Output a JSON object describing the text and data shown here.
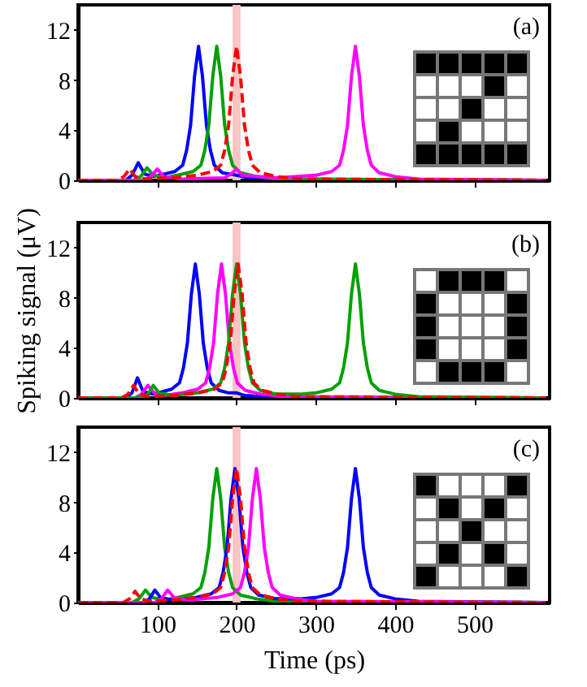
{
  "chart_data": [
    {
      "type": "line",
      "annotations": [
        "(a)"
      ],
      "xlim": [
        0,
        595
      ],
      "xticks": [
        100,
        200,
        300,
        400,
        500
      ],
      "ylim": [
        0,
        14
      ],
      "yticks": [
        0,
        4,
        8,
        12
      ],
      "tick_labels": "y",
      "bands": [
        {
          "axis": "x",
          "from": 195,
          "to": 205,
          "color": "#f9c4c4"
        }
      ],
      "series": [
        {
          "color": "#0000ff",
          "x": [
            0,
            60,
            68,
            76,
            84,
            95,
            102,
            122,
            132,
            137,
            142,
            147,
            152,
            157,
            162,
            167,
            172,
            182,
            200,
            215,
            250,
            590
          ],
          "values": [
            0,
            0,
            0.4,
            1.4,
            0.5,
            0.3,
            0.4,
            0.7,
            1.2,
            2.4,
            4.4,
            8.3,
            10.7,
            8.3,
            4.4,
            2.4,
            1.2,
            0.6,
            0.4,
            0.2,
            0.1,
            0
          ]
        },
        {
          "color": "#00a000",
          "x": [
            0,
            70,
            79,
            87,
            95,
            110,
            125,
            145,
            155,
            160,
            165,
            170,
            175,
            180,
            185,
            190,
            195,
            205,
            225,
            250,
            590
          ],
          "values": [
            0,
            0,
            0.3,
            1.0,
            0.4,
            0.2,
            0.4,
            0.7,
            1.2,
            2.4,
            4.4,
            8.3,
            10.7,
            8.3,
            4.4,
            2.4,
            1.2,
            0.6,
            0.3,
            0.1,
            0
          ]
        },
        {
          "color": "#ff00ff",
          "x": [
            0,
            82,
            92,
            100,
            108,
            130,
            185,
            193,
            200,
            207,
            250,
            300,
            320,
            330,
            335,
            340,
            345,
            350,
            355,
            360,
            365,
            370,
            380,
            400,
            430,
            590
          ],
          "values": [
            0,
            0,
            0.3,
            0.9,
            0.3,
            0.1,
            0.2,
            0.5,
            0.9,
            0.4,
            0.2,
            0.4,
            0.7,
            1.2,
            2.4,
            4.4,
            8.3,
            10.7,
            8.3,
            4.4,
            2.4,
            1.2,
            0.6,
            0.3,
            0.1,
            0
          ]
        },
        {
          "color": "#ff0000",
          "line_style": "dashed",
          "x": [
            0,
            50,
            58,
            65,
            72,
            85,
            120,
            150,
            170,
            180,
            185,
            190,
            195,
            200,
            205,
            210,
            215,
            220,
            230,
            250,
            280,
            590
          ],
          "values": [
            0,
            0,
            0.3,
            0.9,
            0.3,
            0.1,
            0.2,
            0.4,
            0.7,
            1.2,
            2.4,
            4.4,
            8.3,
            10.7,
            8.3,
            4.4,
            2.4,
            1.2,
            0.6,
            0.3,
            0.1,
            0
          ]
        }
      ]
    },
    {
      "type": "line",
      "annotations": [
        "(b)"
      ],
      "ylabel": "Spiking signal (μV)",
      "xlim": [
        0,
        595
      ],
      "xticks": [
        100,
        200,
        300,
        400,
        500
      ],
      "ylim": [
        0,
        14
      ],
      "yticks": [
        0,
        4,
        8,
        12
      ],
      "tick_labels": "y",
      "bands": [
        {
          "axis": "x",
          "from": 195,
          "to": 205,
          "color": "#f9c4c4"
        }
      ],
      "series": [
        {
          "color": "#0000ff",
          "x": [
            0,
            60,
            68,
            75,
            82,
            95,
            118,
            128,
            133,
            138,
            143,
            148,
            153,
            158,
            163,
            168,
            178,
            190,
            200,
            210,
            240,
            280,
            590
          ],
          "values": [
            0,
            0,
            0.4,
            1.6,
            0.5,
            0.3,
            0.7,
            1.2,
            2.4,
            4.4,
            8.3,
            10.7,
            8.3,
            4.4,
            2.4,
            1.2,
            0.6,
            0.4,
            0.4,
            0.2,
            0.1,
            0,
            0
          ]
        },
        {
          "color": "#ff00ff",
          "x": [
            0,
            72,
            80,
            88,
            96,
            110,
            131,
            151,
            161,
            166,
            171,
            176,
            181,
            186,
            191,
            196,
            201,
            211,
            231,
            260,
            590
          ],
          "values": [
            0,
            0,
            0.3,
            1.0,
            0.4,
            0.2,
            0.4,
            0.7,
            1.2,
            2.4,
            4.4,
            8.3,
            10.7,
            8.3,
            4.4,
            2.4,
            1.2,
            0.6,
            0.3,
            0.1,
            0
          ]
        },
        {
          "color": "#00a000",
          "x": [
            0,
            80,
            88,
            95,
            102,
            120,
            150,
            170,
            180,
            185,
            190,
            195,
            200,
            205,
            210,
            215,
            220,
            230,
            250,
            280,
            300,
            320,
            330,
            335,
            340,
            345,
            350,
            355,
            360,
            365,
            370,
            380,
            400,
            430,
            590
          ],
          "values": [
            0,
            0,
            0.3,
            1.0,
            0.4,
            0.2,
            0.4,
            0.7,
            1.2,
            2.4,
            4.4,
            8.3,
            10.7,
            8.3,
            4.4,
            2.4,
            1.2,
            0.6,
            0.3,
            0.3,
            0.4,
            0.7,
            1.2,
            2.4,
            4.4,
            8.3,
            10.7,
            8.3,
            4.4,
            2.4,
            1.2,
            0.6,
            0.3,
            0.1,
            0
          ]
        },
        {
          "color": "#ff0000",
          "line_style": "dashed",
          "x": [
            0,
            55,
            63,
            70,
            77,
            90,
            120,
            152,
            172,
            182,
            187,
            192,
            197,
            202,
            207,
            212,
            217,
            222,
            232,
            252,
            280,
            590
          ],
          "values": [
            0,
            0,
            0.3,
            1.0,
            0.3,
            0.1,
            0.2,
            0.4,
            0.7,
            1.2,
            2.4,
            4.4,
            8.3,
            10.7,
            8.3,
            4.4,
            2.4,
            1.2,
            0.6,
            0.3,
            0.1,
            0
          ]
        }
      ]
    },
    {
      "type": "line",
      "annotations": [
        "(c)"
      ],
      "xlabel": "Time (ps)",
      "xlim": [
        0,
        595
      ],
      "xticks": [
        100,
        200,
        300,
        400,
        500
      ],
      "ylim": [
        0,
        14
      ],
      "yticks": [
        0,
        4,
        8,
        12
      ],
      "bands": [
        {
          "axis": "x",
          "from": 195,
          "to": 205,
          "color": "#f9c4c4"
        }
      ],
      "series": [
        {
          "color": "#00a000",
          "x": [
            0,
            68,
            77,
            85,
            93,
            110,
            125,
            145,
            155,
            160,
            165,
            170,
            175,
            180,
            185,
            190,
            195,
            205,
            225,
            250,
            590
          ],
          "values": [
            0,
            0,
            0.3,
            1.0,
            0.4,
            0.2,
            0.4,
            0.7,
            1.2,
            2.4,
            4.4,
            8.3,
            10.7,
            8.3,
            4.4,
            2.4,
            1.2,
            0.6,
            0.3,
            0.1,
            0
          ]
        },
        {
          "color": "#0000ff",
          "x": [
            0,
            82,
            90,
            97,
            104,
            120,
            148,
            168,
            178,
            183,
            188,
            193,
            198,
            203,
            208,
            213,
            218,
            228,
            250,
            280,
            300,
            320,
            330,
            335,
            340,
            345,
            350,
            355,
            360,
            365,
            370,
            380,
            400,
            430,
            590
          ],
          "values": [
            0,
            0,
            0.3,
            1.0,
            0.4,
            0.2,
            0.4,
            0.7,
            1.2,
            2.4,
            4.4,
            8.3,
            10.7,
            8.3,
            4.4,
            2.4,
            1.2,
            0.6,
            0.3,
            0.3,
            0.4,
            0.7,
            1.2,
            2.4,
            4.4,
            8.3,
            10.7,
            8.3,
            4.4,
            2.4,
            1.2,
            0.6,
            0.3,
            0.1,
            0
          ]
        },
        {
          "color": "#ff00ff",
          "x": [
            0,
            97,
            105,
            113,
            121,
            140,
            175,
            195,
            205,
            210,
            215,
            220,
            225,
            230,
            235,
            240,
            245,
            255,
            275,
            300,
            590
          ],
          "values": [
            0,
            0,
            0.3,
            1.0,
            0.4,
            0.2,
            0.4,
            0.7,
            1.2,
            2.4,
            4.4,
            8.3,
            10.7,
            8.3,
            4.4,
            2.4,
            1.2,
            0.6,
            0.3,
            0.1,
            0
          ]
        },
        {
          "color": "#ff0000",
          "line_style": "dashed",
          "x": [
            0,
            57,
            65,
            72,
            79,
            90,
            120,
            150,
            170,
            180,
            185,
            190,
            195,
            200,
            205,
            210,
            215,
            220,
            230,
            250,
            280,
            590
          ],
          "values": [
            0,
            0,
            0.3,
            0.9,
            0.3,
            0.1,
            0.2,
            0.4,
            0.7,
            1.2,
            2.4,
            4.4,
            8.3,
            10.7,
            8.3,
            4.4,
            2.4,
            1.2,
            0.6,
            0.3,
            0.1,
            0
          ]
        }
      ]
    }
  ]
}
